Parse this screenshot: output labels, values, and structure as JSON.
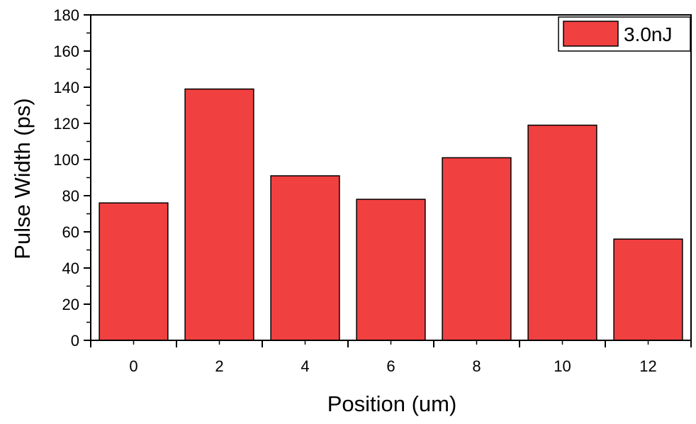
{
  "chart_data": {
    "type": "bar",
    "title": "",
    "xlabel": "Position (um)",
    "ylabel": "Pulse Width (ps)",
    "categories": [
      "0",
      "2",
      "4",
      "6",
      "8",
      "10",
      "12"
    ],
    "series": [
      {
        "name": "3.0nJ",
        "values": [
          76,
          139,
          91,
          78,
          101,
          119,
          56
        ],
        "color": "#f04040"
      }
    ],
    "ylim": [
      0,
      180
    ],
    "yticks": [
      "0",
      "20",
      "40",
      "60",
      "80",
      "100",
      "120",
      "140",
      "160",
      "180"
    ],
    "grid": false,
    "legend_position": "top-right"
  }
}
